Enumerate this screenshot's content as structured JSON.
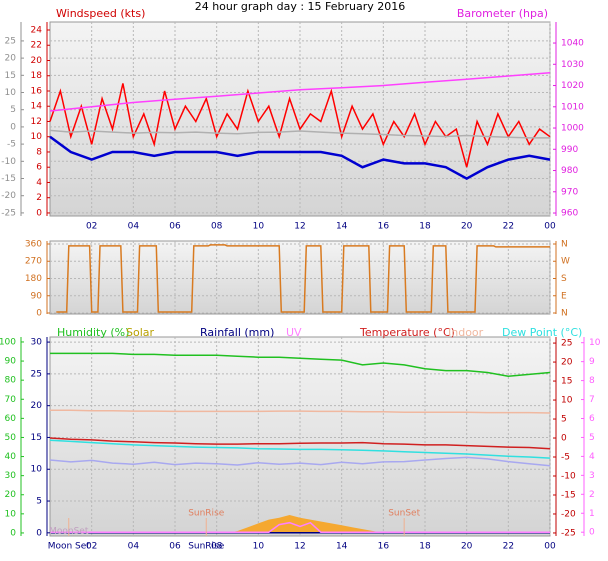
{
  "chart_data": [
    {
      "type": "line",
      "title": "24 hour graph day : 15 February 2016",
      "y_label": "Windspeed (kts)",
      "y2_label": "Barometer (hpa)",
      "xlim": [
        0,
        24
      ],
      "xticks": [
        {
          "value": 2,
          "label": "02"
        },
        {
          "value": 4,
          "label": "04"
        },
        {
          "value": 6,
          "label": "06"
        },
        {
          "value": 8,
          "label": "08"
        },
        10,
        12,
        14,
        16,
        18,
        20,
        22,
        {
          "value": 24,
          "label": "00"
        }
      ],
      "ylim": [
        -0.4,
        25.05
      ],
      "yticks": [
        0,
        2,
        4,
        6,
        8,
        10,
        12,
        14,
        16,
        18,
        20,
        22,
        24
      ],
      "y_color": "#d00000",
      "y2lim": [
        958.6,
        1049.9
      ],
      "y2ticks": [
        960,
        970,
        980,
        990,
        1000,
        1010,
        1020,
        1030,
        1040
      ],
      "y2_color": "#e020e0",
      "y3lim": [
        -25.9,
        30.5
      ],
      "y3ticks": [
        25,
        20,
        15,
        10,
        5,
        0,
        -5,
        -10,
        -15,
        -20,
        -25
      ],
      "y3_color": "#909090",
      "grid": "y3",
      "series": [
        {
          "color": "#ff0000",
          "axis": "y",
          "x": [
            0,
            0.5,
            1,
            1.5,
            2,
            2.5,
            3,
            3.5,
            4,
            4.5,
            5,
            5.5,
            6,
            6.5,
            7,
            7.5,
            8,
            8.5,
            9,
            9.5,
            10,
            10.5,
            11,
            11.5,
            12,
            12.5,
            13,
            13.5,
            14,
            14.5,
            15,
            15.5,
            16,
            16.5,
            17,
            17.5,
            18,
            18.5,
            19,
            19.5,
            20,
            20.5,
            21,
            21.5,
            22,
            22.5,
            23,
            23.5,
            24
          ],
          "values": [
            12,
            16,
            10,
            14,
            9,
            15,
            11,
            17,
            10,
            13,
            9,
            16,
            11,
            14,
            12,
            15,
            10,
            13,
            11,
            16,
            12,
            14,
            10,
            15,
            11,
            13,
            12,
            16,
            10,
            14,
            11,
            13,
            9,
            12,
            10,
            13,
            9,
            12,
            10,
            11,
            6,
            12,
            9,
            13,
            10,
            12,
            9,
            11,
            10
          ]
        },
        {
          "color": "#b0b0b0",
          "axis": "y3",
          "x": [
            0,
            1,
            2,
            3,
            4,
            5,
            6,
            7,
            8,
            9,
            10,
            11,
            12,
            13,
            14,
            15,
            16,
            17,
            18,
            19,
            20,
            21,
            22,
            23,
            24
          ],
          "values": [
            -1,
            -1.5,
            -1.2,
            -1.5,
            -1.8,
            -1.6,
            -1.7,
            -1.5,
            -1.8,
            -2,
            -1.6,
            -1.5,
            -1.2,
            -1.5,
            -1.8,
            -2,
            -2.2,
            -2.5,
            -2.6,
            -2.8,
            -2.5,
            -2.8,
            -3,
            -3.2,
            -3.2
          ]
        },
        {
          "color": "#0000d0",
          "axis": "y",
          "x": [
            0,
            1,
            2,
            3,
            4,
            5,
            6,
            7,
            8,
            9,
            10,
            11,
            12,
            13,
            14,
            15,
            16,
            17,
            18,
            19,
            20,
            21,
            22,
            23,
            24
          ],
          "values": [
            10,
            8,
            7,
            8,
            8,
            7.5,
            8,
            8,
            8,
            7.5,
            8,
            8,
            8,
            8,
            7.5,
            6,
            7,
            6.5,
            6.5,
            6,
            4.5,
            6,
            7,
            7.5,
            7
          ]
        },
        {
          "color": "#ff40ff",
          "axis": "y2",
          "x": [
            0,
            2,
            4,
            6,
            8,
            10,
            12,
            14,
            16,
            18,
            20,
            22,
            24
          ],
          "values": [
            1008,
            1010,
            1012,
            1013.5,
            1015,
            1016.5,
            1018,
            1019,
            1020,
            1021.5,
            1023,
            1024.5,
            1026
          ]
        }
      ]
    },
    {
      "type": "line",
      "xlim": [
        0,
        24
      ],
      "xticks": [
        2,
        4,
        6,
        8,
        10,
        12,
        14,
        16,
        18,
        20,
        22,
        24
      ],
      "ylim": [
        -5.2,
        375.6
      ],
      "yticks": [
        0,
        90,
        180,
        270,
        360
      ],
      "y_color": "#d07020",
      "y2lim": [
        -5.2,
        375.6
      ],
      "y2ticks": [
        {
          "value": 0,
          "label": "N"
        },
        {
          "value": 90,
          "label": "E"
        },
        {
          "value": 180,
          "label": "S"
        },
        {
          "value": 270,
          "label": "W"
        },
        {
          "value": 360,
          "label": "N"
        }
      ],
      "y2_color": "#d07020",
      "grid": "y",
      "series": [
        {
          "color": "#d87a20",
          "axis": "y",
          "x": [
            0.3,
            0.8,
            0.9,
            1.9,
            2.0,
            2.3,
            2.4,
            3.4,
            3.5,
            4.2,
            4.3,
            5.1,
            5.2,
            6.8,
            6.9,
            7.6,
            7.7,
            8.4,
            8.5,
            11.0,
            11.1,
            12.2,
            12.3,
            13.0,
            13.1,
            14.0,
            14.1,
            15.3,
            15.4,
            16.2,
            16.3,
            17.0,
            17.1,
            18.3,
            18.4,
            19.0,
            19.1,
            20.4,
            20.5,
            21.3,
            21.4,
            24
          ],
          "values": [
            5,
            5,
            350,
            350,
            5,
            5,
            350,
            350,
            5,
            5,
            350,
            350,
            5,
            5,
            350,
            350,
            355,
            355,
            350,
            350,
            5,
            5,
            350,
            350,
            5,
            5,
            350,
            350,
            5,
            5,
            350,
            350,
            5,
            5,
            350,
            350,
            5,
            5,
            350,
            350,
            345,
            345
          ]
        }
      ]
    },
    {
      "type": "line",
      "xlim": [
        0,
        24
      ],
      "xticks": [
        {
          "value": 2,
          "label": "02"
        },
        {
          "value": 4,
          "label": "04"
        },
        {
          "value": 6,
          "label": "06"
        },
        {
          "value": 8,
          "label": "08"
        },
        10,
        12,
        14,
        16,
        18,
        20,
        22,
        {
          "value": 24,
          "label": "00"
        }
      ],
      "ylim": [
        -1.6,
        102.6
      ],
      "yticks": [
        0,
        10,
        20,
        30,
        40,
        50,
        60,
        70,
        80,
        90,
        100
      ],
      "y_color": "#20c020",
      "y2lim": [
        -25.8,
        26.6
      ],
      "y2ticks": [
        25,
        20,
        15,
        10,
        5,
        0,
        -5,
        -10,
        -15,
        -20,
        -25
      ],
      "y2_color": "#c00000",
      "y3lim": [
        -0.5,
        30.8
      ],
      "y3ticks": [
        0,
        5,
        10,
        15,
        20,
        25,
        30
      ],
      "y3_color": "#000080",
      "y4lim": [
        -0.2,
        10.3
      ],
      "y4ticks": [
        0,
        1,
        2,
        3,
        4,
        5,
        6,
        7,
        8,
        9,
        10
      ],
      "y4_color": "#ff60ff",
      "grid": "y3",
      "x": [
        0,
        1,
        2,
        3,
        4,
        5,
        6,
        7,
        8,
        9,
        10,
        11,
        12,
        13,
        14,
        15,
        16,
        17,
        18,
        19,
        20,
        21,
        22,
        23,
        24
      ],
      "series": [
        {
          "name": "Humidity (%)",
          "color": "#20c020",
          "axis": "y",
          "values": [
            94,
            94,
            94,
            94,
            93.5,
            93.5,
            93,
            93,
            93,
            92.5,
            92,
            92,
            91.5,
            91,
            90.5,
            88,
            89,
            88,
            86,
            85,
            85,
            84,
            82,
            83,
            84
          ]
        },
        {
          "name": "Solar",
          "color": "#b8a000",
          "fill": "#f5a830",
          "axis": "y",
          "x": [
            8.5,
            9,
            9.5,
            10,
            10.5,
            11,
            11.5,
            12,
            12.5,
            13,
            13.5,
            14,
            14.5,
            15,
            15.5,
            16
          ],
          "values": [
            0,
            1,
            3,
            5,
            7,
            8,
            9.4,
            8,
            7,
            6,
            5,
            4,
            3,
            2,
            1,
            0
          ]
        },
        {
          "name": "Rainfall (mm)",
          "color": "#000080",
          "axis": "y3",
          "x": [
            0,
            24
          ],
          "values": [
            0,
            0
          ]
        },
        {
          "name": "UV",
          "color": "#ff80ff",
          "axis": "y4",
          "x": [
            0,
            10.5,
            11,
            11.5,
            12,
            12.5,
            13,
            24
          ],
          "values": [
            0,
            0,
            0.4,
            0.5,
            0.3,
            0.5,
            0,
            0
          ]
        },
        {
          "name": "Temperature (°C)",
          "color": "#d02020",
          "axis": "y2",
          "values": [
            0,
            -0.3,
            -0.5,
            -0.8,
            -1,
            -1.2,
            -1.3,
            -1.5,
            -1.6,
            -1.6,
            -1.5,
            -1.5,
            -1.4,
            -1.3,
            -1.3,
            -1.2,
            -1.5,
            -1.6,
            -1.8,
            -1.8,
            -2,
            -2.2,
            -2.4,
            -2.5,
            -2.8
          ]
        },
        {
          "name": "Indoor",
          "color": "#f0b8a0",
          "axis": "y2",
          "values": [
            7.3,
            7.3,
            7.2,
            7.2,
            7.1,
            7.1,
            7.0,
            7.0,
            7.0,
            7.0,
            7.0,
            7.1,
            7.1,
            7.0,
            7.0,
            6.9,
            6.9,
            6.8,
            6.8,
            6.8,
            6.8,
            6.7,
            6.7,
            6.7,
            6.6
          ]
        },
        {
          "name": "Dew Point (°C)",
          "color": "#30e0e0",
          "axis": "y2",
          "values": [
            -0.6,
            -0.9,
            -1.2,
            -1.5,
            -1.8,
            -2,
            -2.2,
            -2.4,
            -2.5,
            -2.6,
            -2.8,
            -2.9,
            -3,
            -3,
            -3.1,
            -3.2,
            -3.4,
            -3.6,
            -3.8,
            -4,
            -4.2,
            -4.5,
            -4.8,
            -5,
            -5.3
          ]
        },
        {
          "color": "#a8a8f0",
          "axis": "y2",
          "values": [
            -5.8,
            -6.3,
            -5.9,
            -6.6,
            -6.9,
            -6.4,
            -7,
            -6.6,
            -6.8,
            -7.1,
            -6.5,
            -6.9,
            -6.6,
            -7,
            -6.4,
            -6.8,
            -6.3,
            -6.2,
            -5.8,
            -5.4,
            -5.1,
            -5.5,
            -6.2,
            -6.8,
            -7.3
          ]
        }
      ],
      "annotations": [
        {
          "text": "SunRise",
          "x": 7.5
        },
        {
          "text": "SunSet",
          "x": 17.0
        },
        {
          "text": "MoonSet",
          "x": 0.9
        }
      ],
      "bottom_labels": [
        {
          "text": "Moon Set",
          "x": 0.9
        },
        {
          "text": "SunRise",
          "x": 7.5
        }
      ]
    }
  ]
}
